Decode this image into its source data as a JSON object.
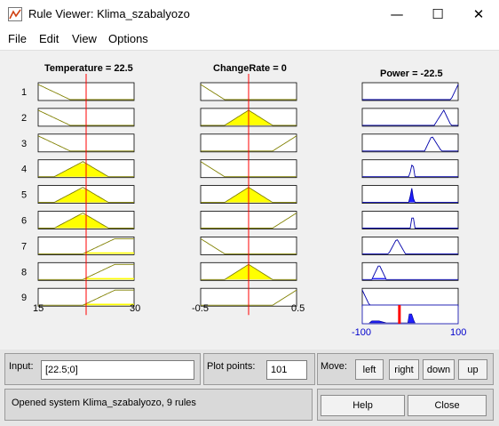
{
  "window": {
    "title": "Rule Viewer: Klima_szabalyozo",
    "minimize_glyph": "—",
    "maximize_glyph": "☐",
    "close_glyph": "✕"
  },
  "menu": [
    "File",
    "Edit",
    "View",
    "Options"
  ],
  "inputs": [
    {
      "name": "Temperature",
      "title": "Temperature = 22.5",
      "value": 22.5,
      "range": [
        15,
        30
      ],
      "min_label": "15",
      "max_label": "30"
    },
    {
      "name": "ChangeRate",
      "title": "ChangeRate = 0",
      "value": 0,
      "range": [
        -0.5,
        0.5
      ],
      "min_label": "-0.5",
      "max_label": "0.5"
    }
  ],
  "output": {
    "name": "Power",
    "title": "Power = -22.5",
    "value": -22.5,
    "range": [
      -100,
      100
    ],
    "min_label": "-100",
    "max_label": "100"
  },
  "rules": [
    {
      "label": "1",
      "temp": {
        "mf": "zmf",
        "p": [
          15,
          20
        ]
      },
      "rate": {
        "mf": "zmf",
        "p": [
          -0.5,
          -0.25
        ]
      },
      "power": {
        "mf": "smf",
        "p": [
          85,
          100
        ]
      }
    },
    {
      "label": "2",
      "temp": {
        "mf": "zmf",
        "p": [
          15,
          20
        ]
      },
      "rate": {
        "mf": "tri",
        "p": [
          -0.25,
          0,
          0.25
        ]
      },
      "power": {
        "mf": "tri",
        "p": [
          50,
          70,
          85
        ]
      }
    },
    {
      "label": "3",
      "temp": {
        "mf": "zmf",
        "p": [
          15,
          20
        ]
      },
      "rate": {
        "mf": "smf",
        "p": [
          0.25,
          0.5
        ]
      },
      "power": {
        "mf": "tri",
        "p": [
          30,
          45,
          65
        ]
      }
    },
    {
      "label": "4",
      "temp": {
        "mf": "tri",
        "p": [
          17.5,
          22,
          26
        ]
      },
      "rate": {
        "mf": "zmf",
        "p": [
          -0.5,
          -0.25
        ]
      },
      "power": {
        "mf": "tri",
        "p": [
          -2,
          5,
          10
        ]
      }
    },
    {
      "label": "5",
      "temp": {
        "mf": "tri",
        "p": [
          17.5,
          22,
          26
        ]
      },
      "rate": {
        "mf": "tri",
        "p": [
          -0.25,
          0,
          0.25
        ]
      },
      "power": {
        "mf": "tri",
        "p": [
          -2,
          3,
          8
        ]
      }
    },
    {
      "label": "6",
      "temp": {
        "mf": "tri",
        "p": [
          17.5,
          22,
          26
        ]
      },
      "rate": {
        "mf": "smf",
        "p": [
          0.25,
          0.5
        ]
      },
      "power": {
        "mf": "tri",
        "p": [
          0,
          5,
          10
        ]
      }
    },
    {
      "label": "7",
      "temp": {
        "mf": "smf",
        "p": [
          22,
          27
        ]
      },
      "rate": {
        "mf": "zmf",
        "p": [
          -0.5,
          -0.25
        ]
      },
      "power": {
        "mf": "tri",
        "p": [
          -45,
          -28,
          -10
        ]
      }
    },
    {
      "label": "8",
      "temp": {
        "mf": "smf",
        "p": [
          22,
          27
        ]
      },
      "rate": {
        "mf": "tri",
        "p": [
          -0.25,
          0,
          0.25
        ]
      },
      "power": {
        "mf": "tri",
        "p": [
          -80,
          -65,
          -50
        ]
      }
    },
    {
      "label": "9",
      "temp": {
        "mf": "smf",
        "p": [
          22,
          27
        ]
      },
      "rate": {
        "mf": "smf",
        "p": [
          0.25,
          0.5
        ]
      },
      "power": {
        "mf": "zmf",
        "p": [
          -100,
          -85
        ]
      }
    }
  ],
  "aggregate": {
    "mf": "pts",
    "xs": [
      -85,
      -80,
      -65,
      -50,
      -5,
      -2,
      3,
      8,
      10
    ],
    "ys": [
      0,
      0.12,
      0.12,
      0,
      0,
      0.55,
      0.55,
      0.12,
      0
    ]
  },
  "controls": {
    "input_label": "Input:",
    "input_value": "[22.5;0]",
    "plot_points_label": "Plot points:",
    "plot_points_value": "101",
    "move_label": "Move:",
    "move_buttons": [
      "left",
      "right",
      "down",
      "up"
    ],
    "status": "Opened system Klima_szabalyozo, 9 rules",
    "help_label": "Help",
    "close_label": "Close"
  },
  "colors": {
    "fill": "#ffff00",
    "agg_fill": "#2020ff",
    "cursor": "#ff0000",
    "curve": "#808000",
    "output_curve": "#0000aa"
  }
}
